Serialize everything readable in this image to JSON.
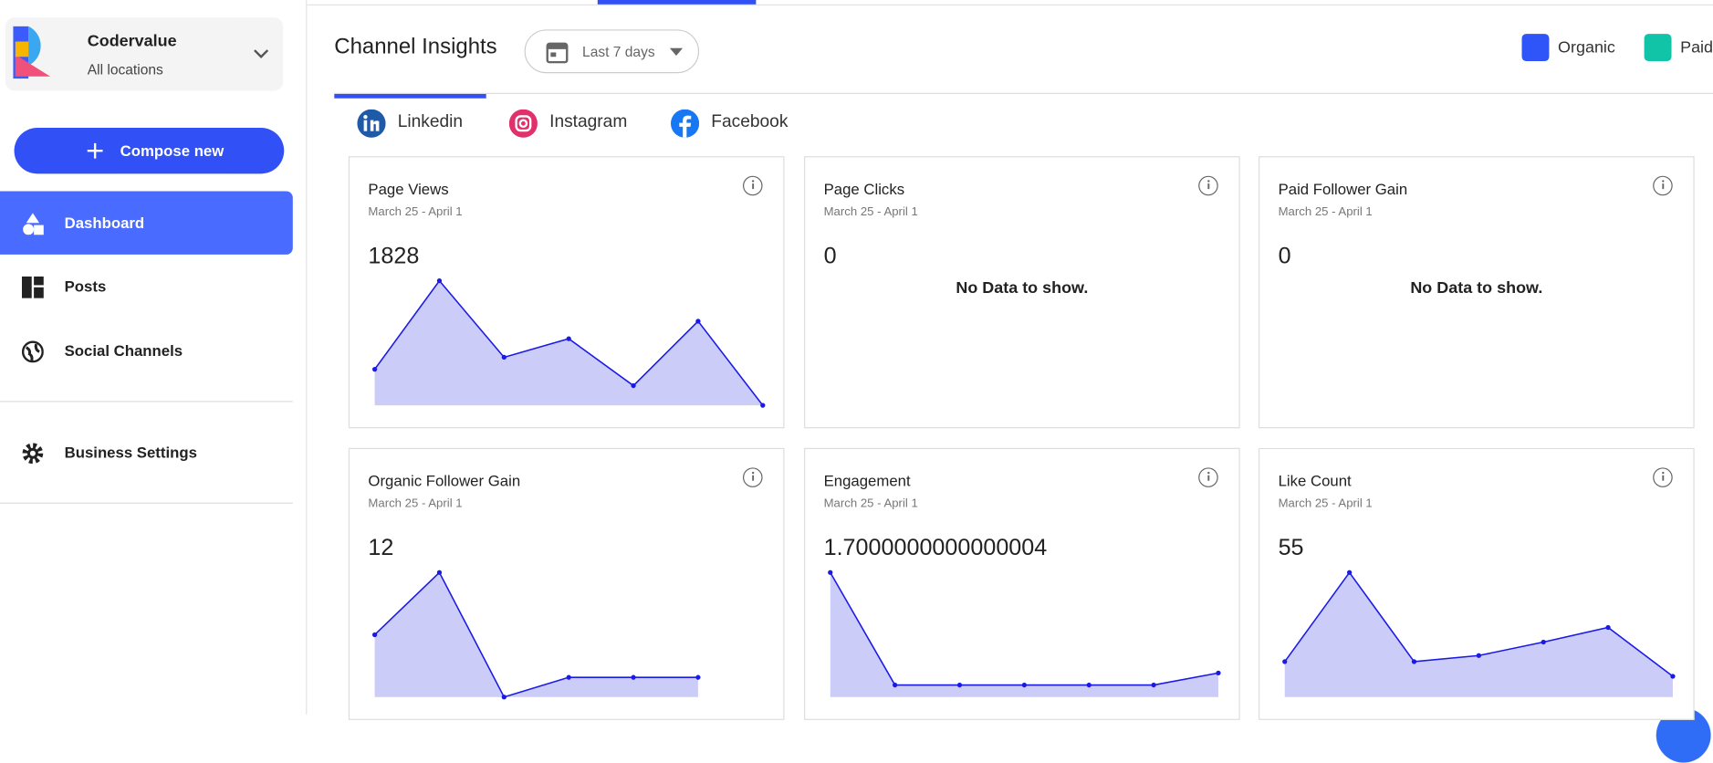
{
  "sidebar": {
    "account": {
      "name": "Codervalue",
      "location": "All locations"
    },
    "compose": "Compose new",
    "nav": [
      "Dashboard",
      "Posts",
      "Social Channels",
      "Business Settings"
    ]
  },
  "header": {
    "title": "Channel Insights",
    "range": "Last 7 days",
    "legend": [
      "Organic",
      "Paid"
    ]
  },
  "tabs": [
    "Linkedin",
    "Instagram",
    "Facebook"
  ],
  "cards": [
    {
      "title": "Page Views",
      "dates": "March 25 - April 1",
      "value": 1828,
      "values": [
        33,
        114,
        44,
        61,
        18,
        77,
        0
      ]
    },
    {
      "title": "Page Clicks",
      "dates": "March 25 - April 1",
      "value": 0,
      "no_data": "No Data to show."
    },
    {
      "title": "Paid Follower Gain",
      "dates": "March 25 - April 1",
      "value": 0,
      "no_data": "No Data to show."
    },
    {
      "title": "Organic Follower Gain",
      "dates": "March 25 - April 1",
      "value": 12,
      "values": [
        57,
        114,
        0,
        18,
        18,
        18
      ]
    },
    {
      "title": "Engagement",
      "dates": "March 25 - April 1",
      "value": 1.7000000000000004,
      "values": [
        114,
        11,
        11,
        11,
        11,
        11,
        22
      ]
    },
    {
      "title": "Like Count",
      "dates": "March 25 - April 1",
      "value": 55,
      "values": [
        29,
        102,
        29,
        34,
        45,
        57,
        17
      ]
    }
  ]
}
